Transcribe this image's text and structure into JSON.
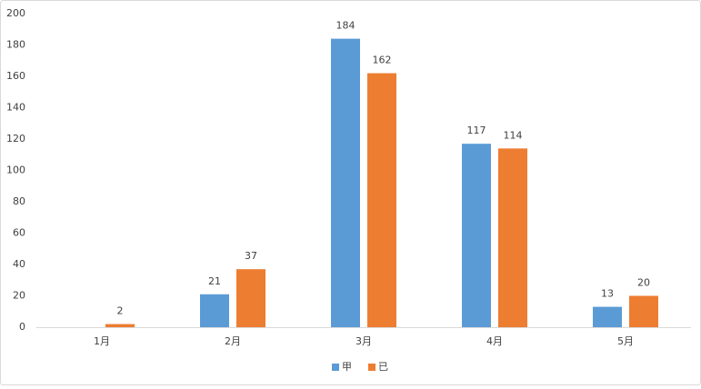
{
  "chart_data": {
    "type": "bar",
    "categories": [
      "1月",
      "2月",
      "3月",
      "4月",
      "5月"
    ],
    "series": [
      {
        "name": "甲",
        "color": "#5b9bd5",
        "values": [
          null,
          21,
          184,
          117,
          13
        ]
      },
      {
        "name": "已",
        "color": "#ed7d31",
        "values": [
          2,
          37,
          162,
          114,
          20
        ]
      }
    ],
    "ylim": [
      0,
      200
    ],
    "yticks": [
      0,
      20,
      40,
      60,
      80,
      100,
      120,
      140,
      160,
      180,
      200
    ],
    "grid": false,
    "legend": "bottom"
  }
}
